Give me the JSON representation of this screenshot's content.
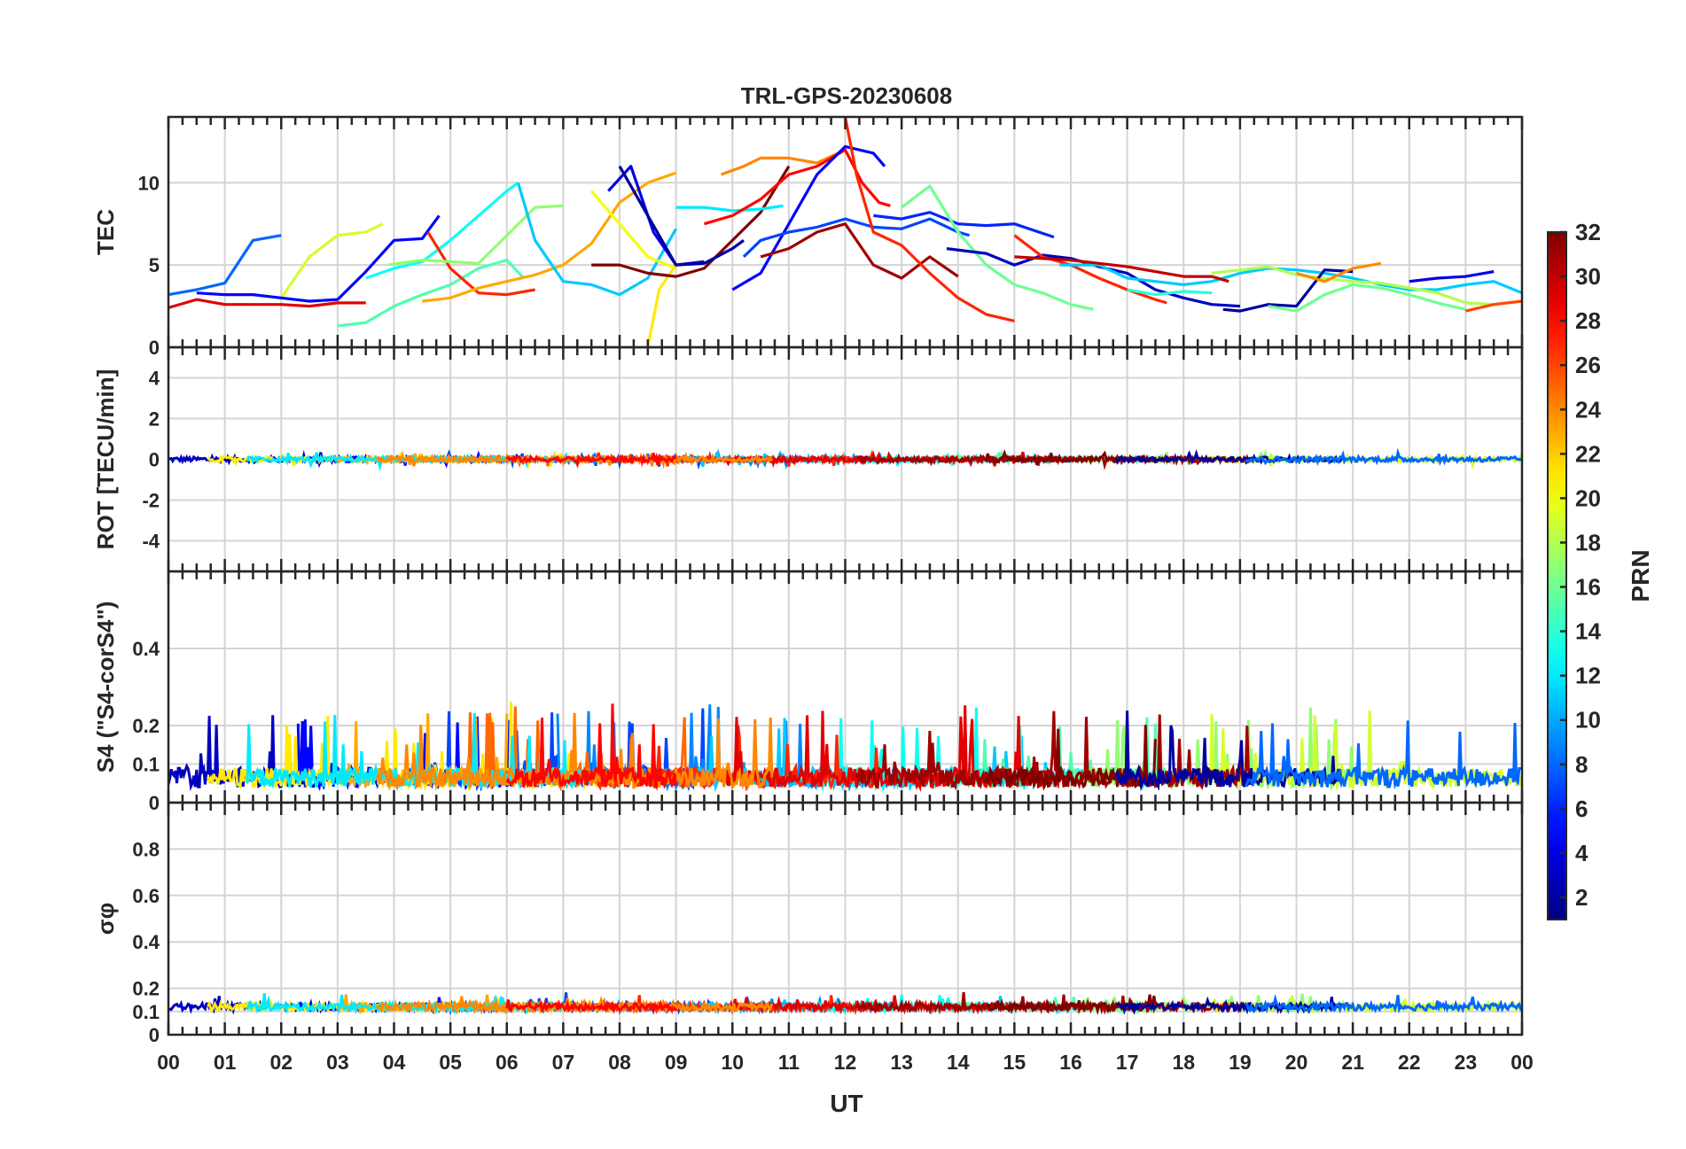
{
  "chart_data": {
    "type": "line",
    "title": "TRL-GPS-20230608",
    "xlabel": "UT",
    "x_tick_labels": [
      "00",
      "01",
      "02",
      "03",
      "04",
      "05",
      "06",
      "07",
      "08",
      "09",
      "10",
      "11",
      "12",
      "13",
      "14",
      "15",
      "16",
      "17",
      "18",
      "19",
      "20",
      "21",
      "22",
      "23",
      "00"
    ],
    "xlim_hours": [
      0,
      24
    ],
    "panels": [
      {
        "name": "tec",
        "ylabel": "TEC",
        "ylim": [
          0,
          14
        ],
        "yticks": [
          0,
          5,
          10
        ],
        "ytick_labels": [
          "0",
          "5",
          "10"
        ],
        "series": [
          {
            "prn": 8,
            "x": [
              0.0,
              0.5,
              1.0,
              1.5,
              2.0
            ],
            "y": [
              3.2,
              3.5,
              3.9,
              6.5,
              6.8
            ]
          },
          {
            "prn": 29,
            "x": [
              0.0,
              0.5,
              1.0,
              1.5,
              2.0,
              2.5,
              3.0,
              3.5
            ],
            "y": [
              2.4,
              2.9,
              2.6,
              2.6,
              2.6,
              2.5,
              2.7,
              2.7
            ]
          },
          {
            "prn": 19,
            "x": [
              2.0,
              2.5,
              3.0,
              3.5,
              3.8
            ],
            "y": [
              3.0,
              5.5,
              6.8,
              7.0,
              7.5
            ]
          },
          {
            "prn": 5,
            "x": [
              0.5,
              1.0,
              1.5,
              2.0,
              2.5,
              3.0,
              3.5,
              4.0,
              4.5,
              4.8
            ],
            "y": [
              3.3,
              3.2,
              3.2,
              3.0,
              2.8,
              2.9,
              4.6,
              6.5,
              6.6,
              8.0
            ]
          },
          {
            "prn": 15,
            "x": [
              3.0,
              3.5,
              4.0,
              4.5,
              5.0,
              5.5,
              6.0,
              6.3
            ],
            "y": [
              1.3,
              1.5,
              2.5,
              3.2,
              3.8,
              4.8,
              5.3,
              4.2
            ]
          },
          {
            "prn": 13,
            "x": [
              3.5,
              4.0,
              4.5,
              5.0,
              5.5,
              6.0,
              6.2
            ],
            "y": [
              4.2,
              4.8,
              5.2,
              6.5,
              8.0,
              9.5,
              10.0
            ]
          },
          {
            "prn": 27,
            "x": [
              4.6,
              5.0,
              5.5,
              6.0,
              6.5
            ],
            "y": [
              7.0,
              4.8,
              3.3,
              3.2,
              3.5
            ]
          },
          {
            "prn": 17,
            "x": [
              3.9,
              4.5,
              5.0,
              5.5,
              6.0,
              6.5,
              7.0
            ],
            "y": [
              5.0,
              5.3,
              5.2,
              5.1,
              6.8,
              8.5,
              8.6
            ]
          },
          {
            "prn": 23,
            "x": [
              4.5,
              5.0,
              5.5,
              6.0,
              6.5,
              7.0,
              7.5,
              8.0,
              8.5,
              9.0
            ],
            "y": [
              2.8,
              3.0,
              3.6,
              4.0,
              4.4,
              5.0,
              6.3,
              8.8,
              10.0,
              10.6
            ]
          },
          {
            "prn": 11,
            "x": [
              6.2,
              6.5,
              7.0,
              7.5,
              8.0,
              8.5,
              9.0
            ],
            "y": [
              10.0,
              6.5,
              4.0,
              3.8,
              3.2,
              4.2,
              7.2
            ]
          },
          {
            "prn": 20,
            "x": [
              7.5,
              8.0,
              8.5,
              9.0
            ],
            "y": [
              9.5,
              7.5,
              5.5,
              4.8
            ]
          },
          {
            "prn": 21,
            "x": [
              8.5,
              8.7,
              9.0
            ],
            "y": [
              0.0,
              3.5,
              5.0
            ]
          },
          {
            "prn": 32,
            "x": [
              7.5,
              8.0,
              8.5,
              9.0,
              9.5,
              10.0,
              10.5,
              11.0
            ],
            "y": [
              5.0,
              5.0,
              4.5,
              4.3,
              4.8,
              6.5,
              8.2,
              11.0
            ]
          },
          {
            "prn": 4,
            "x": [
              7.8,
              8.2,
              8.6,
              9.0,
              9.5
            ],
            "y": [
              9.5,
              11.0,
              7.0,
              5.0,
              5.2
            ]
          },
          {
            "prn": 2,
            "x": [
              8.0,
              8.5,
              9.0,
              9.5,
              10.0,
              10.2
            ],
            "y": [
              11.0,
              8.0,
              5.0,
              5.1,
              6.0,
              6.5
            ]
          },
          {
            "prn": 12,
            "x": [
              9.0,
              9.5,
              10.0,
              10.5,
              10.9
            ],
            "y": [
              8.5,
              8.5,
              8.3,
              8.4,
              8.6
            ]
          },
          {
            "prn": 24,
            "x": [
              9.8,
              10.2,
              10.5,
              11.0,
              11.5,
              12.0
            ],
            "y": [
              10.5,
              11.0,
              11.5,
              11.5,
              11.2,
              12.0
            ]
          },
          {
            "prn": 28,
            "x": [
              9.5,
              10.0,
              10.5,
              11.0,
              11.5,
              12.0,
              12.3,
              12.6,
              12.8
            ],
            "y": [
              7.5,
              8.0,
              9.0,
              10.5,
              11.0,
              12.0,
              10.0,
              8.8,
              8.6
            ]
          },
          {
            "prn": 5,
            "x": [
              10.0,
              10.5,
              11.0,
              11.5,
              12.0,
              12.5,
              12.7
            ],
            "y": [
              3.5,
              4.5,
              7.5,
              10.5,
              12.2,
              11.8,
              11.0
            ]
          },
          {
            "prn": 7,
            "x": [
              10.2,
              10.5,
              11.0,
              11.5,
              12.0,
              12.5,
              13.0,
              13.5,
              14.0,
              14.2
            ],
            "y": [
              5.5,
              6.5,
              7.0,
              7.3,
              7.8,
              7.3,
              7.2,
              7.8,
              7.0,
              6.8
            ]
          },
          {
            "prn": 31,
            "x": [
              10.5,
              11.0,
              11.5,
              12.0,
              12.5,
              13.0,
              13.5,
              14.0
            ],
            "y": [
              5.5,
              6.0,
              7.0,
              7.5,
              5.0,
              4.2,
              5.5,
              4.3
            ]
          },
          {
            "prn": 27,
            "x": [
              12.0,
              12.2,
              12.5,
              13.0,
              13.5,
              14.0,
              14.5,
              15.0
            ],
            "y": [
              14.0,
              10.5,
              7.0,
              6.2,
              4.5,
              3.0,
              2.0,
              1.6
            ]
          },
          {
            "prn": 6,
            "x": [
              12.5,
              13.0,
              13.5,
              14.0,
              14.5,
              15.0,
              15.7
            ],
            "y": [
              8.0,
              7.8,
              8.2,
              7.5,
              7.4,
              7.5,
              6.7
            ]
          },
          {
            "prn": 16,
            "x": [
              13.0,
              13.5,
              14.0,
              14.5,
              15.0,
              15.5,
              16.0,
              16.4
            ],
            "y": [
              8.5,
              9.8,
              7.0,
              5.0,
              3.8,
              3.3,
              2.6,
              2.3
            ]
          },
          {
            "prn": 3,
            "x": [
              13.8,
              14.5,
              15.0,
              15.5,
              16.0,
              16.5,
              17.0,
              17.5,
              18.0,
              18.5,
              19.0
            ],
            "y": [
              6.0,
              5.7,
              5.0,
              5.6,
              5.4,
              4.9,
              4.5,
              3.5,
              3.0,
              2.6,
              2.5
            ]
          },
          {
            "prn": 27,
            "x": [
              15.0,
              15.5,
              16.0,
              16.5,
              17.0,
              17.5,
              17.7
            ],
            "y": [
              6.8,
              5.5,
              5.0,
              4.2,
              3.5,
              2.9,
              2.7
            ]
          },
          {
            "prn": 11,
            "x": [
              15.8,
              16.5,
              17.0,
              17.5,
              18.0,
              18.5,
              19.0,
              19.5,
              20.0,
              20.5,
              21.0,
              21.5,
              22.0,
              22.5,
              23.0,
              23.5,
              24.0
            ],
            "y": [
              5.0,
              5.0,
              4.2,
              4.0,
              3.8,
              4.0,
              4.5,
              4.8,
              4.7,
              4.5,
              4.2,
              3.8,
              3.5,
              3.5,
              3.8,
              4.0,
              3.3
            ]
          },
          {
            "prn": 30,
            "x": [
              15.0,
              16.0,
              16.5,
              17.0,
              17.5,
              18.0,
              18.5,
              18.8
            ],
            "y": [
              5.5,
              5.3,
              5.1,
              4.9,
              4.6,
              4.3,
              4.3,
              4.0
            ]
          },
          {
            "prn": 14,
            "x": [
              17.0,
              17.5,
              18.0,
              18.5
            ],
            "y": [
              3.5,
              3.2,
              3.4,
              3.3
            ]
          },
          {
            "prn": 18,
            "x": [
              18.5,
              19.0,
              19.5,
              20.0,
              20.5,
              21.0,
              21.5,
              22.0,
              22.5,
              23.0,
              23.5,
              24.0
            ],
            "y": [
              4.5,
              4.7,
              4.9,
              4.4,
              4.2,
              4.0,
              3.9,
              3.6,
              3.3,
              2.7,
              2.6,
              2.8
            ]
          },
          {
            "prn": 2,
            "x": [
              18.7,
              19.0,
              19.5,
              20.0,
              20.5,
              21.0
            ],
            "y": [
              2.3,
              2.2,
              2.6,
              2.5,
              4.7,
              4.6
            ]
          },
          {
            "prn": 16,
            "x": [
              19.5,
              20.0,
              20.5,
              21.0,
              21.5,
              22.0,
              22.5,
              23.0
            ],
            "y": [
              2.5,
              2.2,
              3.2,
              3.8,
              3.6,
              3.2,
              2.7,
              2.3
            ]
          },
          {
            "prn": 24,
            "x": [
              20.0,
              20.5,
              21.0,
              21.5
            ],
            "y": [
              4.5,
              4.0,
              4.8,
              5.1
            ]
          },
          {
            "prn": 4,
            "x": [
              22.0,
              22.5,
              23.0,
              23.5
            ],
            "y": [
              4.0,
              4.2,
              4.3,
              4.6
            ]
          },
          {
            "prn": 26,
            "x": [
              23.0,
              23.5,
              24.0
            ],
            "y": [
              2.2,
              2.6,
              2.8
            ]
          }
        ]
      },
      {
        "name": "rot",
        "ylabel": "ROT [TECU/min]",
        "ylim": [
          -5.5,
          5.5
        ],
        "yticks": [
          -4,
          -2,
          0,
          2,
          4
        ],
        "ytick_labels": [
          "-4",
          "-2",
          "0",
          "2",
          "4"
        ],
        "noise": {
          "baseline": 0.0,
          "typical_amplitude": 0.12,
          "max_excursion": 0.7
        }
      },
      {
        "name": "s4",
        "ylabel": "S4 (\"S4-corS4\")",
        "ylim": [
          0,
          0.6
        ],
        "yticks": [
          0,
          0.1,
          0.2,
          0.4
        ],
        "ytick_labels": [
          "0",
          "0.1",
          "0.2",
          "0.4"
        ],
        "noise": {
          "baseline": 0.04,
          "typical_amplitude": 0.05,
          "max_value": 0.22
        }
      },
      {
        "name": "sigma_phi",
        "ylabel": "σφ",
        "ylim": [
          0,
          1.0
        ],
        "yticks": [
          0,
          0.1,
          0.2,
          0.4,
          0.6,
          0.8
        ],
        "ytick_labels": [
          "0",
          "0.1",
          "0.2",
          "0.4",
          "0.6",
          "0.8"
        ],
        "noise": {
          "baseline": 0.12,
          "typical_amplitude": 0.015,
          "max_value": 0.17
        }
      }
    ],
    "colorbar": {
      "label": "PRN",
      "range": [
        1,
        32
      ],
      "ticks": [
        2,
        4,
        6,
        8,
        10,
        12,
        14,
        16,
        18,
        20,
        22,
        24,
        26,
        28,
        30,
        32
      ],
      "tick_labels": [
        "2",
        "4",
        "6",
        "8",
        "10",
        "12",
        "14",
        "16",
        "18",
        "20",
        "22",
        "24",
        "26",
        "28",
        "30",
        "32"
      ],
      "colormap": "jet"
    }
  }
}
